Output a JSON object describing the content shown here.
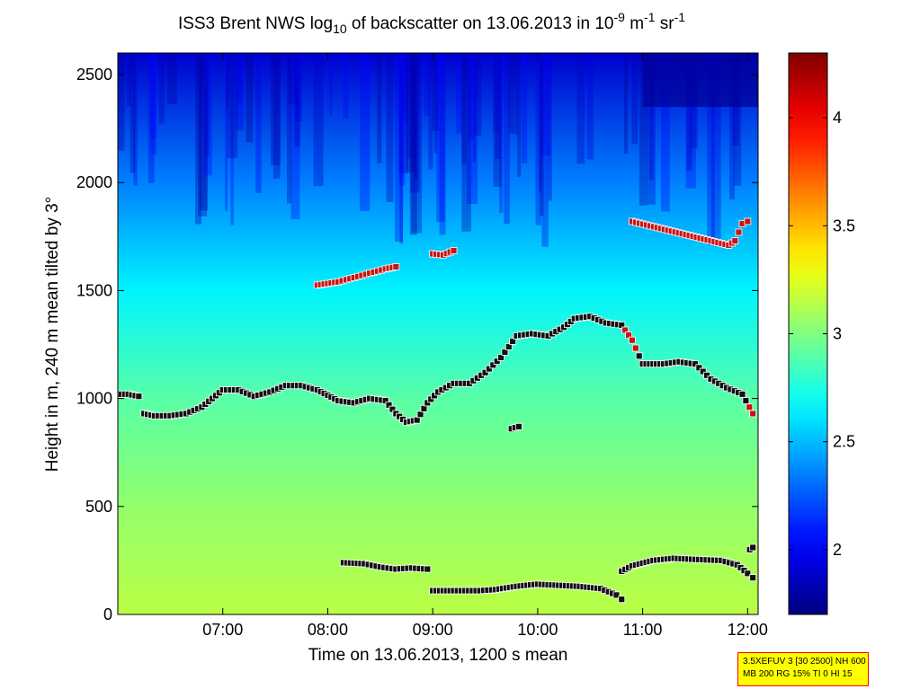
{
  "chart_data": {
    "type": "heatmap",
    "title": {
      "prefix": "ISS3 Brent NWS log",
      "sub": "10",
      "mid": " of backscatter on 13.06.2013 in 10",
      "sup1": "-9",
      "unit_m": " m",
      "sup2": "-1",
      "unit_sr": " sr",
      "sup3": "-1"
    },
    "xlabel": "Time on 13.06.2013, 1200 s mean",
    "ylabel": "Height in m, 240 m mean tilted by 3°",
    "x_unit": "hours",
    "xlim": [
      6.0,
      12.1
    ],
    "ylim": [
      0,
      2600
    ],
    "x_ticks": [
      {
        "value": 7,
        "label": "07:00"
      },
      {
        "value": 8,
        "label": "08:00"
      },
      {
        "value": 9,
        "label": "09:00"
      },
      {
        "value": 10,
        "label": "10:00"
      },
      {
        "value": 11,
        "label": "11:00"
      },
      {
        "value": 12,
        "label": "12:00"
      }
    ],
    "y_ticks": [
      {
        "value": 0,
        "label": "0"
      },
      {
        "value": 500,
        "label": "500"
      },
      {
        "value": 1000,
        "label": "1000"
      },
      {
        "value": 1500,
        "label": "1500"
      },
      {
        "value": 2000,
        "label": "2000"
      },
      {
        "value": 2500,
        "label": "2500"
      }
    ],
    "colorbar": {
      "colormap": "jet",
      "range": [
        1.7,
        4.3
      ],
      "ticks": [
        {
          "value": 2,
          "label": "2"
        },
        {
          "value": 2.5,
          "label": "2.5"
        },
        {
          "value": 3,
          "label": "3"
        },
        {
          "value": 3.5,
          "label": "3.5"
        },
        {
          "value": 4,
          "label": "4"
        }
      ]
    },
    "background_field": {
      "description_levels": [
        {
          "height": 0,
          "value": 3.15
        },
        {
          "height": 500,
          "value": 3.05
        },
        {
          "height": 1000,
          "value": 2.9
        },
        {
          "height": 1500,
          "value": 2.65
        },
        {
          "height": 2000,
          "value": 2.35
        },
        {
          "height": 2600,
          "value": 1.9
        }
      ]
    },
    "series": [
      {
        "name": "",
        "points": [
          [
            6.0,
            1020
          ],
          [
            6.1,
            1020
          ],
          [
            6.2,
            1010
          ],
          [
            6.25,
            930
          ],
          [
            6.35,
            920
          ],
          [
            6.5,
            920
          ],
          [
            6.65,
            930
          ],
          [
            6.8,
            960
          ],
          [
            6.9,
            1000
          ],
          [
            7.0,
            1040
          ],
          [
            7.15,
            1040
          ],
          [
            7.3,
            1010
          ],
          [
            7.45,
            1030
          ],
          [
            7.6,
            1060
          ],
          [
            7.75,
            1060
          ],
          [
            7.9,
            1040
          ],
          [
            8.1,
            990
          ],
          [
            8.25,
            980
          ],
          [
            8.4,
            1000
          ],
          [
            8.55,
            990
          ],
          [
            8.65,
            930
          ],
          [
            8.75,
            890
          ],
          [
            8.85,
            900
          ],
          [
            8.95,
            980
          ],
          [
            9.05,
            1030
          ],
          [
            9.2,
            1070
          ],
          [
            9.35,
            1070
          ],
          [
            9.5,
            1120
          ],
          [
            9.65,
            1190
          ],
          [
            9.8,
            1290
          ],
          [
            9.95,
            1300
          ],
          [
            10.1,
            1290
          ],
          [
            10.25,
            1330
          ],
          [
            10.35,
            1370
          ],
          [
            10.5,
            1380
          ],
          [
            10.65,
            1350
          ],
          [
            10.8,
            1340
          ],
          [
            10.9,
            1270
          ],
          [
            11.0,
            1160
          ],
          [
            11.2,
            1160
          ],
          [
            11.35,
            1170
          ],
          [
            11.5,
            1160
          ],
          [
            11.65,
            1090
          ],
          [
            11.8,
            1050
          ],
          [
            11.95,
            1020
          ],
          [
            12.05,
            930
          ]
        ]
      },
      {
        "name": "",
        "points": [
          [
            7.9,
            1525
          ],
          [
            8.1,
            1540
          ],
          [
            8.25,
            1560
          ],
          [
            8.4,
            1580
          ],
          [
            8.55,
            1600
          ],
          [
            8.65,
            1610
          ]
        ]
      },
      {
        "name": "",
        "points": [
          [
            9.0,
            1670
          ],
          [
            9.1,
            1665
          ],
          [
            9.2,
            1685
          ]
        ]
      },
      {
        "name": "",
        "points": [
          [
            9.75,
            860
          ],
          [
            9.82,
            870
          ]
        ]
      },
      {
        "name": "",
        "points": [
          [
            10.9,
            1820
          ],
          [
            11.82,
            1710
          ],
          [
            11.88,
            1730
          ],
          [
            11.95,
            1810
          ],
          [
            12.0,
            1820
          ]
        ]
      },
      {
        "name": "",
        "points": [
          [
            8.15,
            240
          ],
          [
            8.35,
            235
          ],
          [
            8.5,
            220
          ],
          [
            8.65,
            210
          ],
          [
            8.8,
            215
          ],
          [
            8.95,
            210
          ]
        ]
      },
      {
        "name": "",
        "points": [
          [
            9.0,
            110
          ],
          [
            9.2,
            110
          ],
          [
            9.45,
            110
          ],
          [
            9.6,
            115
          ],
          [
            9.8,
            130
          ],
          [
            10.0,
            140
          ],
          [
            10.2,
            135
          ],
          [
            10.4,
            130
          ],
          [
            10.6,
            120
          ],
          [
            10.75,
            90
          ],
          [
            10.8,
            70
          ]
        ]
      },
      {
        "name": "",
        "points": [
          [
            10.8,
            200
          ],
          [
            10.9,
            225
          ],
          [
            11.1,
            250
          ],
          [
            11.3,
            260
          ],
          [
            11.5,
            255
          ],
          [
            11.75,
            250
          ],
          [
            11.9,
            230
          ],
          [
            12.0,
            190
          ],
          [
            12.05,
            170
          ]
        ]
      },
      {
        "name": "",
        "points": [
          [
            12.02,
            300
          ],
          [
            12.05,
            310
          ]
        ]
      }
    ]
  },
  "info_box": {
    "line1": "3.5XEFUV 3 [30 2500] NH 600",
    "line2": "MB 200 RG 15% TI 0 HI 15"
  }
}
